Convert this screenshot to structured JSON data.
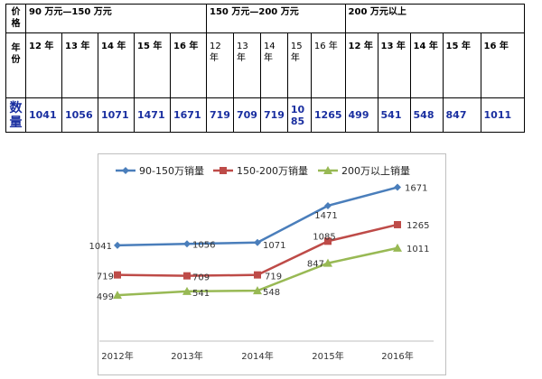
{
  "table": {
    "price_label": "价格",
    "year_label": "年份",
    "qty_label": "数量",
    "groups": [
      {
        "title": "90 万元—150 万元",
        "years": [
          "12 年",
          "13 年",
          "14 年",
          "15 年",
          "16 年"
        ],
        "values": [
          "1041",
          "1056",
          "1071",
          "1471",
          "1671"
        ]
      },
      {
        "title": "150 万元—200 万元",
        "years": [
          "12 年",
          "13 年",
          "14 年",
          "15 年",
          "16 年"
        ],
        "values": [
          "719",
          "709",
          "719",
          "1085",
          "1265"
        ]
      },
      {
        "title": "200 万元以上",
        "years": [
          "12 年",
          "13 年",
          "14 年",
          "15 年",
          "16 年"
        ],
        "values": [
          "499",
          "541",
          "548",
          "847",
          "1011"
        ]
      }
    ]
  },
  "chart_data": {
    "type": "line",
    "categories": [
      "2012年",
      "2013年",
      "2014年",
      "2015年",
      "2016年"
    ],
    "series": [
      {
        "name": "90-150万销量",
        "values": [
          1041,
          1056,
          1071,
          1471,
          1671
        ],
        "color": "#4a7ebb",
        "marker": "diamond"
      },
      {
        "name": "150-200万销量",
        "values": [
          719,
          709,
          719,
          1085,
          1265
        ],
        "color": "#be4b48",
        "marker": "square"
      },
      {
        "name": "200万以上销量",
        "values": [
          499,
          541,
          548,
          847,
          1011
        ],
        "color": "#98b954",
        "marker": "triangle"
      }
    ],
    "ylim": [
      0,
      2000
    ],
    "grid": false,
    "legend_position": "top"
  }
}
